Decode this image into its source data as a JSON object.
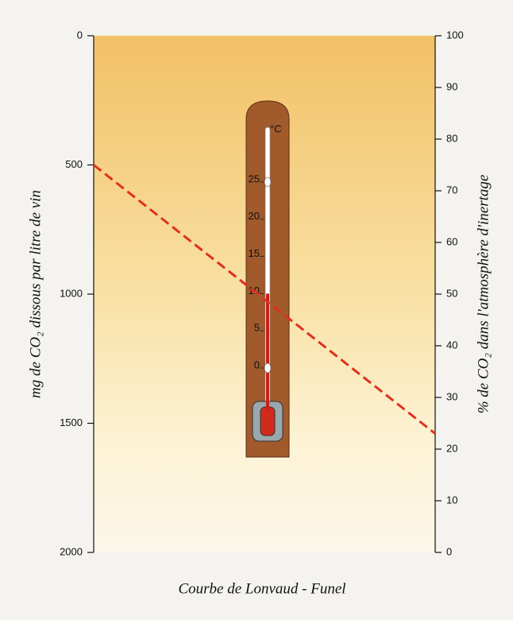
{
  "chart_data": {
    "type": "line",
    "caption": "Courbe de Lonvaud - Funel",
    "y_label": "mg de CO₂ dissous par litre de vin",
    "y2_label": "% de CO₂ dans l'atmosphère d'inertage",
    "ylim": [
      0,
      2000
    ],
    "yticks": [
      0,
      500,
      1000,
      1500,
      2000
    ],
    "y_inverted": true,
    "y2lim": [
      0,
      100
    ],
    "y2ticks": [
      0,
      10,
      20,
      30,
      40,
      50,
      60,
      70,
      80,
      90,
      100
    ],
    "categories": [
      null,
      null
    ],
    "series": [
      {
        "color": "#e0301e",
        "dashed": true,
        "values": [
          500,
          1540
        ]
      }
    ],
    "thermometer": {
      "unit": "°C",
      "scale": [
        0,
        5,
        10,
        15,
        20,
        25
      ],
      "reading": 10
    }
  }
}
